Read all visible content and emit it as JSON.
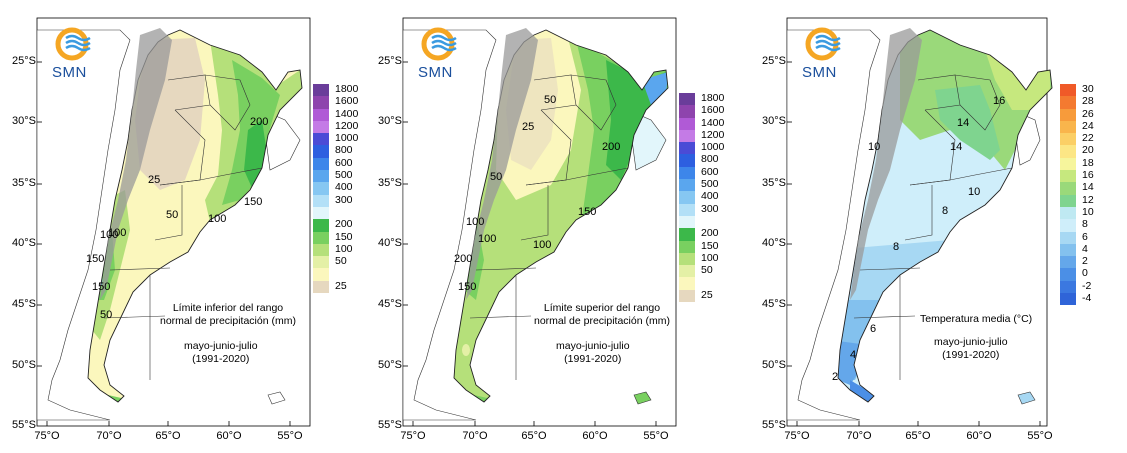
{
  "lat_labels": [
    "25°S",
    "30°S",
    "35°S",
    "40°S",
    "45°S",
    "50°S",
    "55°S"
  ],
  "lon_labels": [
    "75°O",
    "70°O",
    "65°O",
    "60°O",
    "55°O"
  ],
  "logo": {
    "text": "SMN",
    "icon": "smn-sun-waves-logo"
  },
  "panels": [
    {
      "id": "lower",
      "caption_lines": [
        "Límite inferior del rango",
        "normal de precipitación (mm)"
      ],
      "period_lines": [
        "mayo-junio-julio",
        "(1991-2020)"
      ],
      "legend": [
        {
          "label": "1800",
          "color": "#6a3d9a"
        },
        {
          "label": "1600",
          "color": "#8e44ad"
        },
        {
          "label": "1400",
          "color": "#b05ad6"
        },
        {
          "label": "1200",
          "color": "#c47be6"
        },
        {
          "label": "1000",
          "color": "#4b4bd6"
        },
        {
          "label": "800",
          "color": "#2d5fe0"
        },
        {
          "label": "600",
          "color": "#3d86ea"
        },
        {
          "label": "500",
          "color": "#5aa6ee"
        },
        {
          "label": "400",
          "color": "#86c7f2"
        },
        {
          "label": "300",
          "color": "#b3e0f7"
        },
        {
          "label": "",
          "color": "#e2f6fb"
        },
        {
          "label": "200",
          "color": "#3cb84a"
        },
        {
          "label": "150",
          "color": "#79d060"
        },
        {
          "label": "100",
          "color": "#b5e07a"
        },
        {
          "label": "50",
          "color": "#e4f0a6"
        },
        {
          "label": "",
          "color": "#fbf7bd"
        },
        {
          "label": "25",
          "color": "#e6d8bf"
        }
      ],
      "contour_labels": [
        "25",
        "50",
        "100",
        "150",
        "200",
        "100",
        "150",
        "50",
        "150",
        "100"
      ]
    },
    {
      "id": "upper",
      "caption_lines": [
        "Límite superior del rango",
        "normal de precipitación (mm)"
      ],
      "period_lines": [
        "mayo-junio-julio",
        "(1991-2020)"
      ],
      "legend": [
        {
          "label": "1800",
          "color": "#6a3d9a"
        },
        {
          "label": "1600",
          "color": "#8e44ad"
        },
        {
          "label": "1400",
          "color": "#b05ad6"
        },
        {
          "label": "1200",
          "color": "#c47be6"
        },
        {
          "label": "1000",
          "color": "#4b4bd6"
        },
        {
          "label": "800",
          "color": "#2d5fe0"
        },
        {
          "label": "600",
          "color": "#3d86ea"
        },
        {
          "label": "500",
          "color": "#5aa6ee"
        },
        {
          "label": "400",
          "color": "#86c7f2"
        },
        {
          "label": "300",
          "color": "#b3e0f7"
        },
        {
          "label": "",
          "color": "#e2f6fb"
        },
        {
          "label": "200",
          "color": "#3cb84a"
        },
        {
          "label": "150",
          "color": "#79d060"
        },
        {
          "label": "100",
          "color": "#b5e07a"
        },
        {
          "label": "50",
          "color": "#e4f0a6"
        },
        {
          "label": "",
          "color": "#fbf7bd"
        },
        {
          "label": "25",
          "color": "#e6d8bf"
        }
      ],
      "contour_labels": [
        "25",
        "50",
        "50",
        "200",
        "150",
        "100",
        "100",
        "150",
        "200",
        "100"
      ]
    },
    {
      "id": "temp",
      "caption_lines": [
        "Temperatura media (°C)"
      ],
      "period_lines": [
        "mayo-junio-julio",
        "(1991-2020)"
      ],
      "legend": [
        {
          "label": "30",
          "color": "#f05a28"
        },
        {
          "label": "28",
          "color": "#f47a30"
        },
        {
          "label": "26",
          "color": "#f79b3b"
        },
        {
          "label": "24",
          "color": "#f9b54c"
        },
        {
          "label": "22",
          "color": "#fbcf66"
        },
        {
          "label": "20",
          "color": "#fce685"
        },
        {
          "label": "18",
          "color": "#f6f59c"
        },
        {
          "label": "16",
          "color": "#c6e87e"
        },
        {
          "label": "14",
          "color": "#9ad97a"
        },
        {
          "label": "12",
          "color": "#7fd48f"
        },
        {
          "label": "10",
          "color": "#bfe9f2"
        },
        {
          "label": "8",
          "color": "#cfeefa"
        },
        {
          "label": "6",
          "color": "#a7d8f3"
        },
        {
          "label": "4",
          "color": "#83c1ee"
        },
        {
          "label": "2",
          "color": "#64a7ea"
        },
        {
          "label": "0",
          "color": "#4b8fe6"
        },
        {
          "label": "-2",
          "color": "#3b78e0"
        },
        {
          "label": "-4",
          "color": "#2f64d8"
        }
      ],
      "contour_labels": [
        "16",
        "14",
        "14",
        "10",
        "10",
        "8",
        "8",
        "6",
        "4",
        "2"
      ]
    }
  ]
}
